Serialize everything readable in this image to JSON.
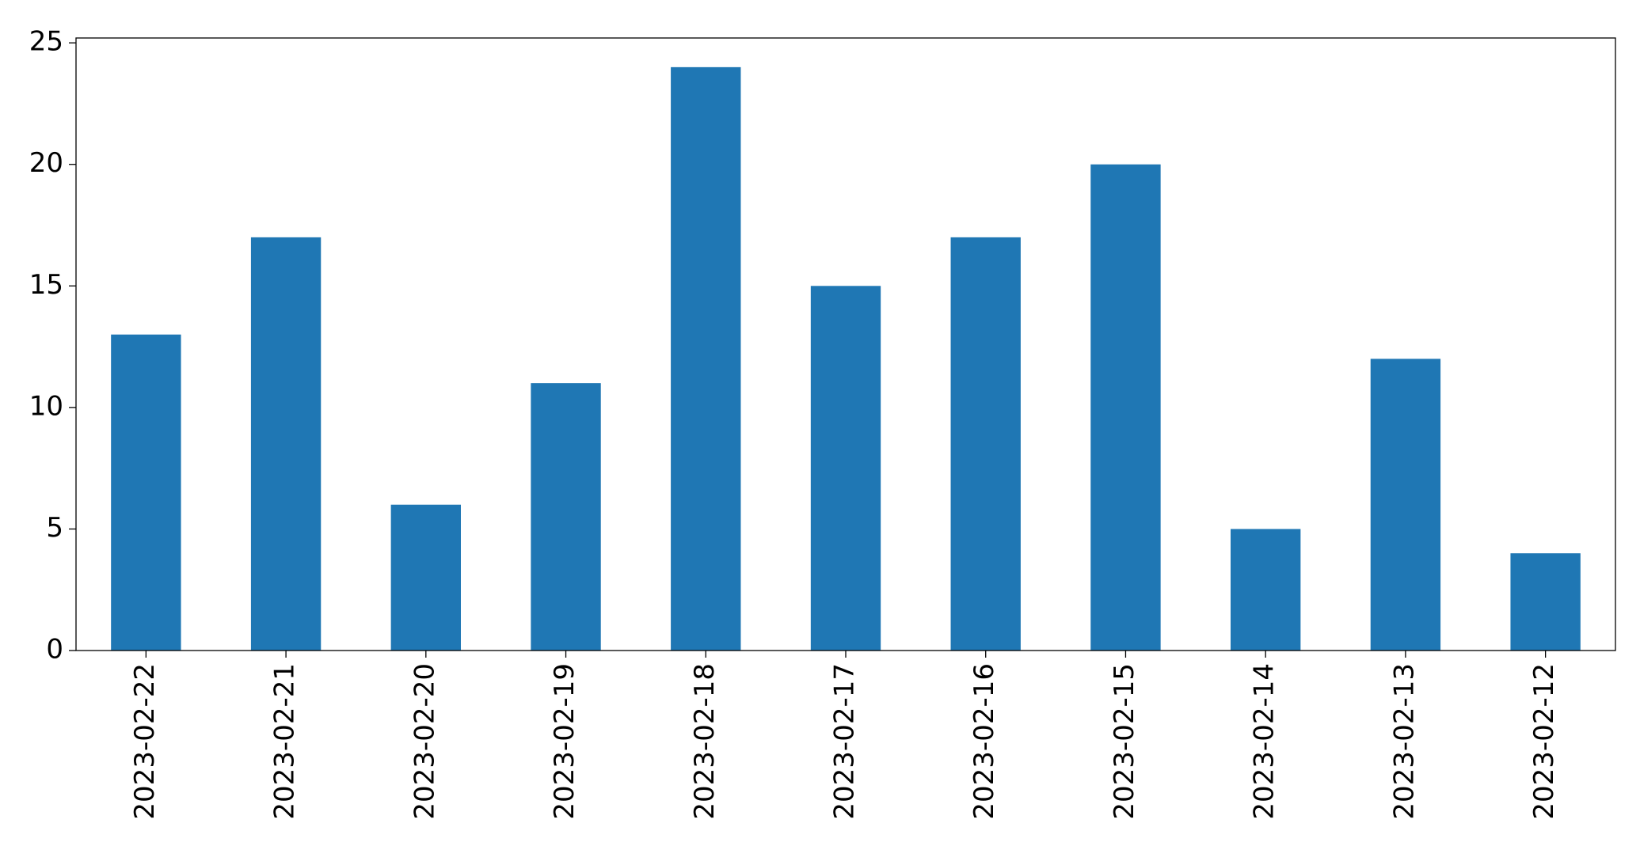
{
  "chart_data": {
    "type": "bar",
    "categories": [
      "2023-02-22",
      "2023-02-21",
      "2023-02-20",
      "2023-02-19",
      "2023-02-18",
      "2023-02-17",
      "2023-02-16",
      "2023-02-15",
      "2023-02-14",
      "2023-02-13",
      "2023-02-12"
    ],
    "values": [
      13,
      17,
      6,
      11,
      24,
      15,
      17,
      20,
      5,
      12,
      4
    ],
    "color": "#1f77b4",
    "ylim": [
      0,
      25.2
    ],
    "yticks": [
      0,
      5,
      10,
      15,
      20,
      25
    ],
    "grid": false
  }
}
